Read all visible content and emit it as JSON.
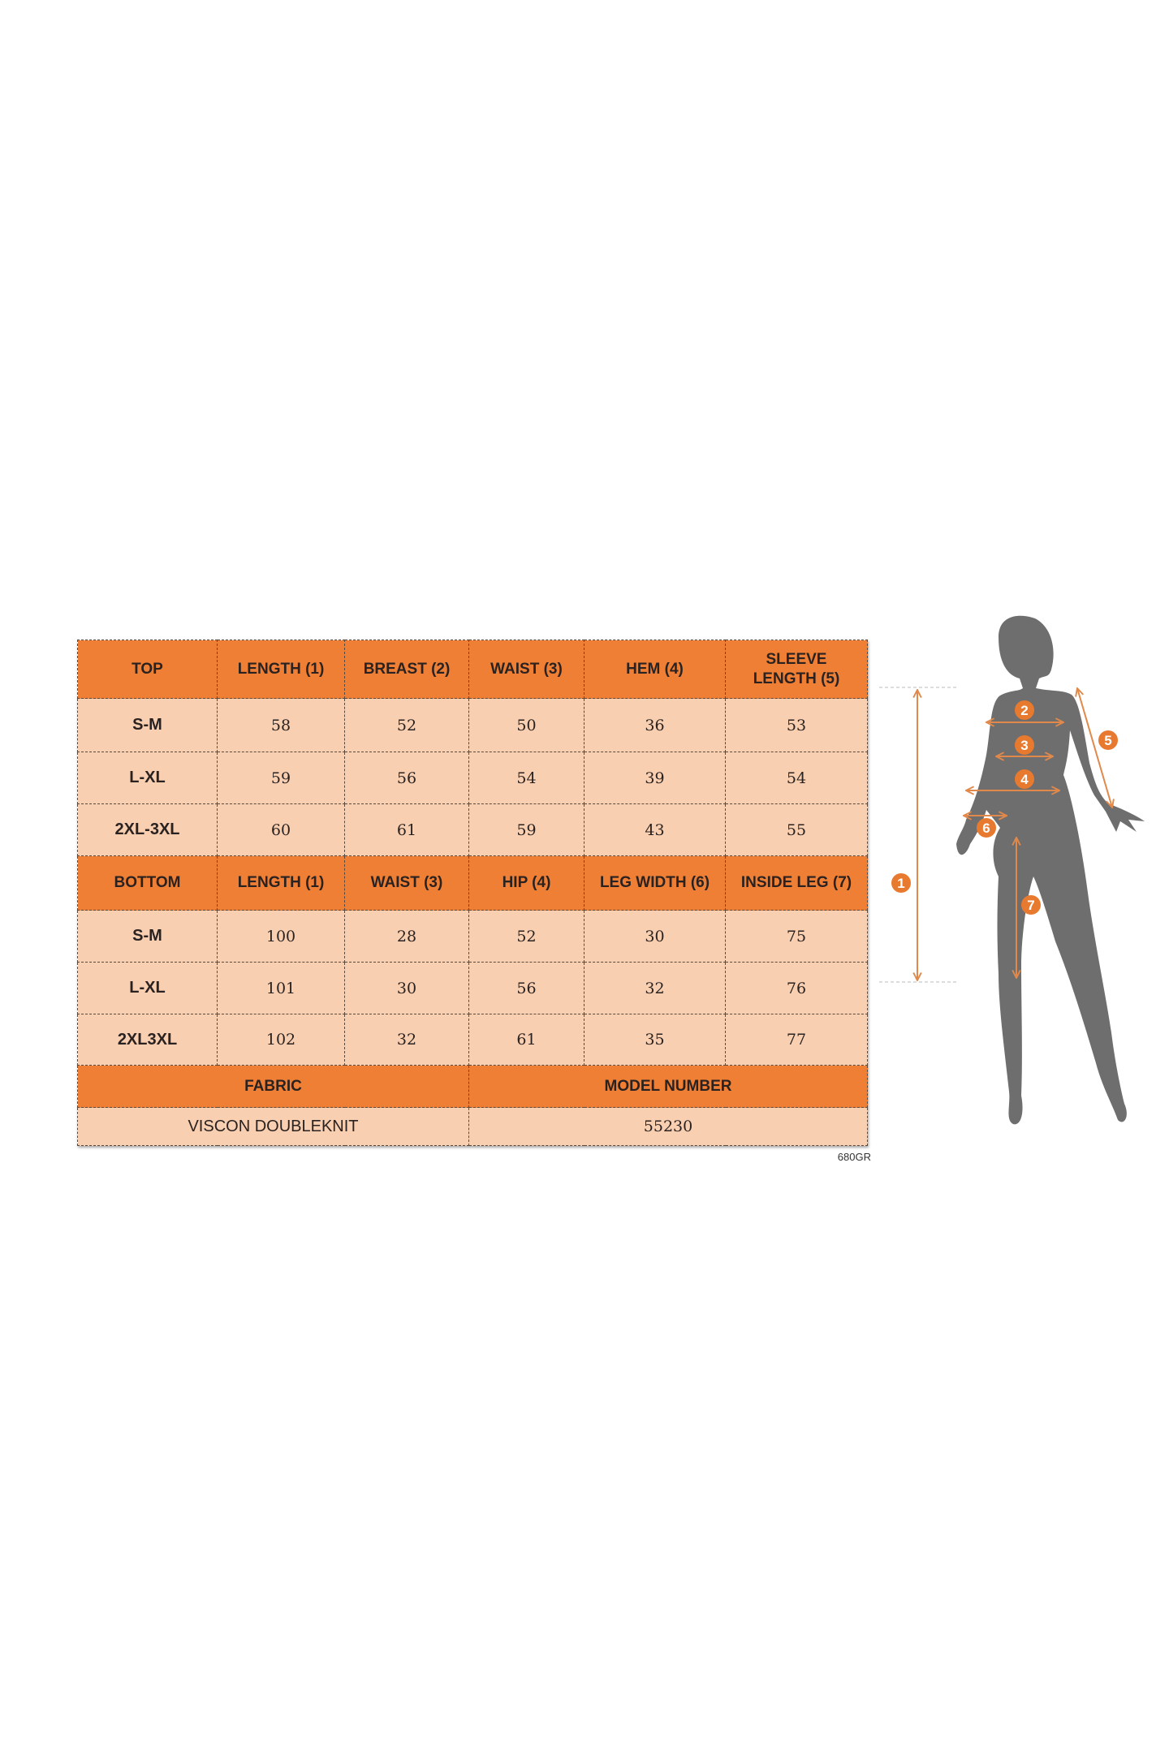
{
  "top_table": {
    "headers": [
      "TOP",
      "LENGTH (1)",
      "BREAST (2)",
      "WAIST (3)",
      "HEM (4)",
      "SLEEVE LENGTH (5)"
    ],
    "rows": [
      [
        "S-M",
        "58",
        "52",
        "50",
        "36",
        "53"
      ],
      [
        "L-XL",
        "59",
        "56",
        "54",
        "39",
        "54"
      ],
      [
        "2XL-3XL",
        "60",
        "61",
        "59",
        "43",
        "55"
      ]
    ]
  },
  "bottom_table": {
    "headers": [
      "BOTTOM",
      "LENGTH (1)",
      "WAIST (3)",
      "HIP (4)",
      "LEG WIDTH (6)",
      "INSIDE LEG (7)"
    ],
    "rows": [
      [
        "S-M",
        "100",
        "28",
        "52",
        "30",
        "75"
      ],
      [
        "L-XL",
        "101",
        "30",
        "56",
        "32",
        "76"
      ],
      [
        "2XL3XL",
        "102",
        "32",
        "61",
        "35",
        "77"
      ]
    ]
  },
  "info": {
    "fabric_label": "FABRIC",
    "fabric_value": "VISCON DOUBLEKNIT",
    "model_label": "MODEL NUMBER",
    "model_value": "55230"
  },
  "code": "680GR",
  "figure": {
    "markers": [
      "1",
      "2",
      "3",
      "4",
      "5",
      "6",
      "7"
    ],
    "colors": {
      "header": "#ef7f34",
      "cell": "#f9cfb1",
      "silhouette": "#6e6e6e",
      "arrow": "#e0894a"
    }
  }
}
